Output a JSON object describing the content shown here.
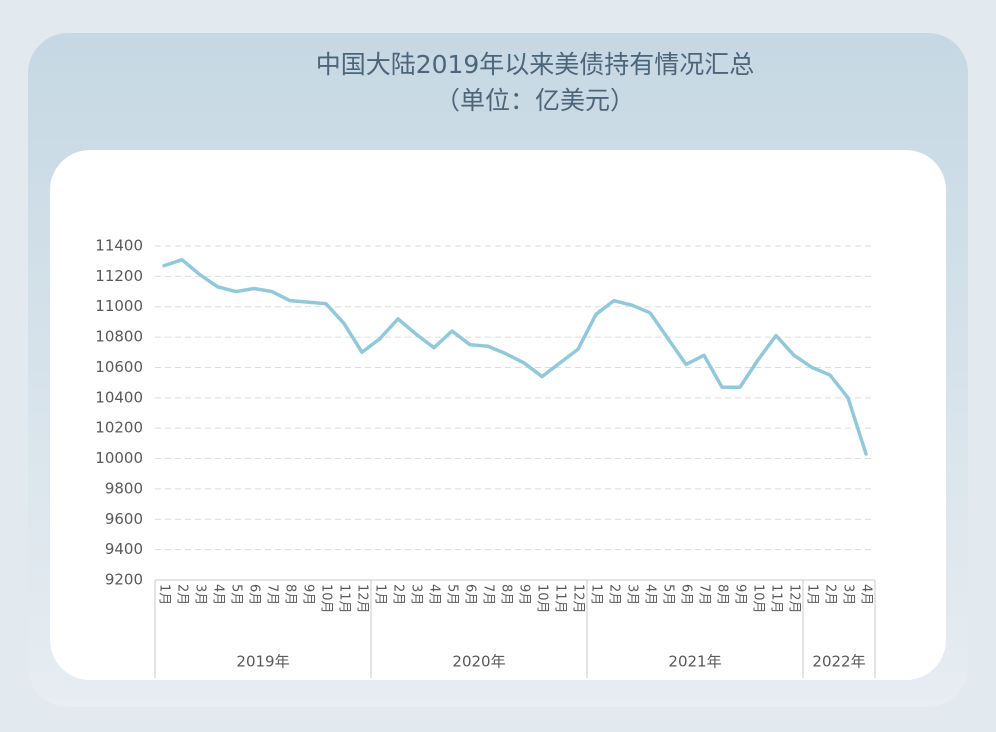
{
  "chart_data": {
    "type": "line",
    "title": "中国大陆2019年以来美债持有情况汇总",
    "subtitle": "（单位：亿美元）",
    "groups": [
      {
        "label": "2019年",
        "categories": [
          "1月",
          "2月",
          "3月",
          "4月",
          "5月",
          "6月",
          "7月",
          "8月",
          "9月",
          "10月",
          "11月",
          "12月"
        ]
      },
      {
        "label": "2020年",
        "categories": [
          "1月",
          "2月",
          "3月",
          "4月",
          "5月",
          "6月",
          "7月",
          "8月",
          "9月",
          "10月",
          "11月",
          "12月"
        ]
      },
      {
        "label": "2021年",
        "categories": [
          "1月",
          "2月",
          "3月",
          "4月",
          "5月",
          "6月",
          "7月",
          "8月",
          "9月",
          "10月",
          "11月",
          "12月"
        ]
      },
      {
        "label": "2022年",
        "categories": [
          "1月",
          "2月",
          "3月",
          "4月"
        ]
      }
    ],
    "values": [
      11270,
      11310,
      11210,
      11130,
      11100,
      11120,
      11100,
      11040,
      11030,
      11020,
      10890,
      10700,
      10790,
      10920,
      10820,
      10730,
      10840,
      10750,
      10740,
      10690,
      10630,
      10540,
      10630,
      10720,
      10950,
      11040,
      11010,
      10960,
      10790,
      10620,
      10680,
      10470,
      10470,
      10650,
      10810,
      10680,
      10600,
      10550,
      10400,
      10030
    ],
    "color": "#92c9da",
    "ylim": [
      9200,
      11400
    ],
    "yticks": [
      9200,
      9400,
      9600,
      9800,
      10000,
      10200,
      10400,
      10600,
      10800,
      11000,
      11200,
      11400
    ],
    "grid": true
  }
}
